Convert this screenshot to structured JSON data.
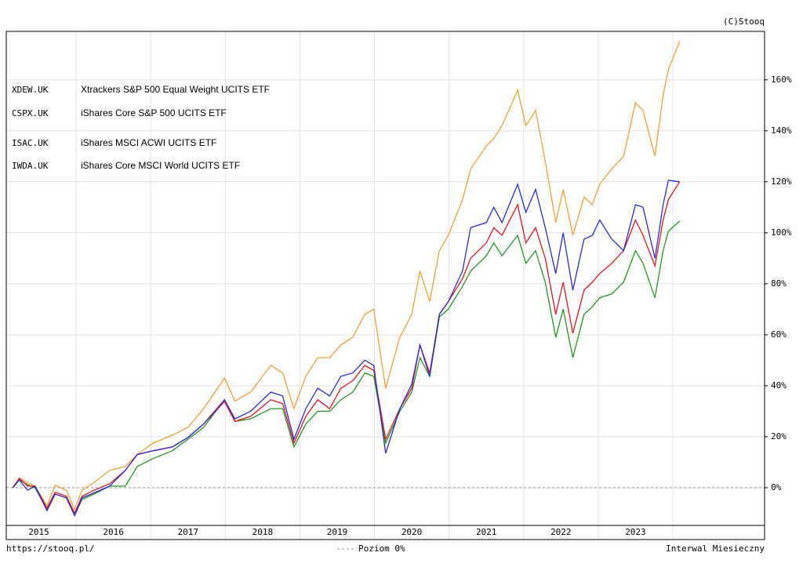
{
  "chart_data": {
    "type": "line",
    "source": "(C)Stooq",
    "url": "https://stooq.pl/",
    "interval": "Interwal Miesieczny",
    "hline": {
      "value": 0,
      "label": "Poziom 0%"
    },
    "x": [
      2015.15,
      2015.24,
      2015.35,
      2015.45,
      2015.61,
      2015.72,
      2015.87,
      2015.98,
      2016.08,
      2016.24,
      2016.45,
      2016.66,
      2016.82,
      2017.03,
      2017.29,
      2017.5,
      2017.71,
      2017.99,
      2018.13,
      2018.34,
      2018.61,
      2018.77,
      2018.92,
      2019.08,
      2019.24,
      2019.4,
      2019.55,
      2019.71,
      2019.87,
      2019.99,
      2020.15,
      2020.34,
      2020.5,
      2020.61,
      2020.74,
      2020.87,
      2020.99,
      2021.18,
      2021.29,
      2021.5,
      2021.6,
      2021.71,
      2021.92,
      2022.03,
      2022.16,
      2022.29,
      2022.43,
      2022.53,
      2022.66,
      2022.81,
      2022.92,
      2023.02,
      2023.18,
      2023.34,
      2023.5,
      2023.6,
      2023.76,
      2023.87,
      2023.94,
      2024.09
    ],
    "series": [
      {
        "name": "CSPX.UK",
        "description": "iShares Core S&P 500 UCITS ETF",
        "color": "#f5a030",
        "values": [
          0,
          3.7,
          2,
          0.6,
          -7,
          1,
          -1,
          -8.6,
          -1,
          2,
          6.8,
          8.3,
          13,
          17.5,
          20.6,
          23.7,
          31,
          43,
          34,
          37.5,
          48,
          45,
          31,
          43.7,
          51,
          51,
          56,
          59,
          68,
          70,
          39,
          59,
          68,
          85,
          73,
          93,
          99,
          113,
          125,
          134,
          137,
          142,
          156,
          142,
          148,
          128,
          104,
          117,
          99,
          114,
          111,
          119,
          125,
          130,
          151,
          148,
          130,
          154,
          164,
          175
        ]
      },
      {
        "name": "ISAC.UK",
        "description": "iShares MSCI ACWI UCITS ETF",
        "color": "#1f9a1f",
        "values": [
          0,
          3,
          1.2,
          0,
          -8.6,
          -2.5,
          -4,
          -11,
          -4.6,
          -2.5,
          0.6,
          0.6,
          8.3,
          11.4,
          14.5,
          19,
          23.7,
          34.5,
          26,
          27,
          31,
          31,
          16,
          25,
          30,
          30,
          34.5,
          37.5,
          45,
          43.7,
          17.5,
          30,
          37.5,
          51,
          43.7,
          67,
          70,
          79,
          85,
          91,
          96,
          91,
          99,
          88,
          93,
          80.6,
          59,
          70,
          51,
          68,
          71,
          74.5,
          76,
          80.6,
          93,
          88,
          74.5,
          93,
          100.6,
          104.6
        ]
      },
      {
        "name": "IWDA.UK",
        "description": "iShares Core MSCI World UCITS ETF",
        "color": "#e8141e",
        "values": [
          0,
          3.7,
          0.6,
          0.6,
          -8,
          -1.8,
          -3.4,
          -10,
          -3.4,
          -1,
          1.5,
          6.8,
          13,
          14.5,
          16,
          19.7,
          25,
          33.8,
          26,
          28,
          34.5,
          33,
          17.5,
          28,
          34.5,
          31,
          39,
          42,
          48,
          46,
          19,
          31,
          39,
          56,
          45,
          68,
          73,
          82,
          90,
          96,
          102,
          99,
          111,
          96,
          102,
          90,
          68,
          80.6,
          60.6,
          77.5,
          80.6,
          84,
          88,
          93,
          105,
          99,
          87,
          105,
          113,
          120
        ]
      },
      {
        "name": "XDEW.UK",
        "description": "Xtrackers S&P 500 Equal Weight UCITS ETF",
        "color": "#2a2ae6",
        "values": [
          0,
          3,
          -1,
          0.6,
          -9,
          -2.5,
          -4,
          -10.8,
          -4,
          -2,
          0.6,
          6.8,
          13,
          14.5,
          16,
          19.7,
          25,
          34.5,
          27,
          30,
          37.5,
          36,
          19,
          31,
          39,
          36,
          43.7,
          45,
          50,
          48,
          13.5,
          31,
          40.6,
          56,
          43.7,
          68,
          73,
          85,
          102,
          104,
          110,
          104,
          119,
          108,
          117,
          102,
          84,
          100,
          77.5,
          97.5,
          99,
          105,
          97.5,
          93,
          111,
          110,
          90,
          111,
          120.6,
          120
        ]
      }
    ],
    "legend_order": [
      3,
      0,
      1,
      2
    ],
    "xlim": [
      2015.064,
      2025.23
    ],
    "xgrid": [
      2016,
      2017,
      2018,
      2019,
      2020,
      2021,
      2022,
      2023,
      2024
    ],
    "xticks": [
      {
        "value": 2015.5,
        "label": "2015"
      },
      {
        "value": 2016.5,
        "label": "2016"
      },
      {
        "value": 2017.5,
        "label": "2017"
      },
      {
        "value": 2018.5,
        "label": "2018"
      },
      {
        "value": 2019.5,
        "label": "2019"
      },
      {
        "value": 2020.5,
        "label": "2020"
      },
      {
        "value": 2021.5,
        "label": "2021"
      },
      {
        "value": 2022.5,
        "label": "2022"
      },
      {
        "value": 2023.5,
        "label": "2023"
      }
    ],
    "ylim": [
      -14.8,
      179
    ],
    "yticks": [
      {
        "value": 0,
        "label": "0%"
      },
      {
        "value": 20,
        "label": "20%"
      },
      {
        "value": 40,
        "label": "40%"
      },
      {
        "value": 60,
        "label": "60%"
      },
      {
        "value": 80,
        "label": "80%"
      },
      {
        "value": 100,
        "label": "100%"
      },
      {
        "value": 120,
        "label": "120%"
      },
      {
        "value": 140,
        "label": "140%"
      },
      {
        "value": 160,
        "label": "160%"
      }
    ],
    "grid": true
  }
}
